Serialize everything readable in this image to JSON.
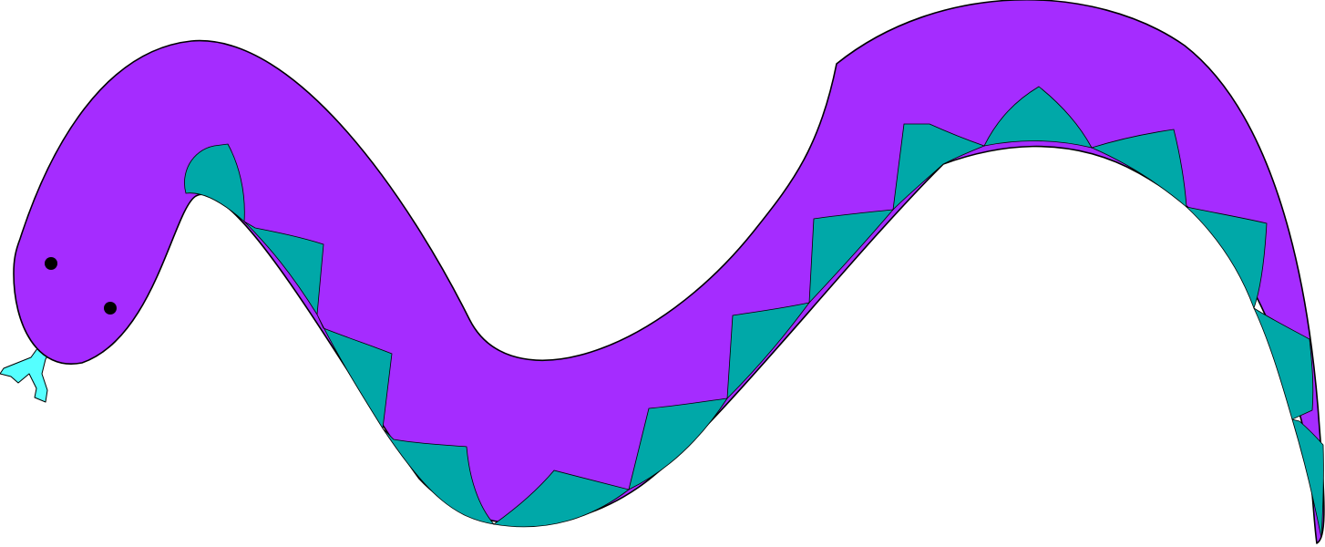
{
  "colors": {
    "background": "#ffffff",
    "snake_body": "#a52cff",
    "snake_belly": "#00a8a8",
    "tongue": "#55ffff",
    "outline": "#000000",
    "eyes": "#000000"
  },
  "icons": {
    "snake": "snake-icon",
    "eye": "eye-icon",
    "tongue": "forked-tongue-icon"
  }
}
